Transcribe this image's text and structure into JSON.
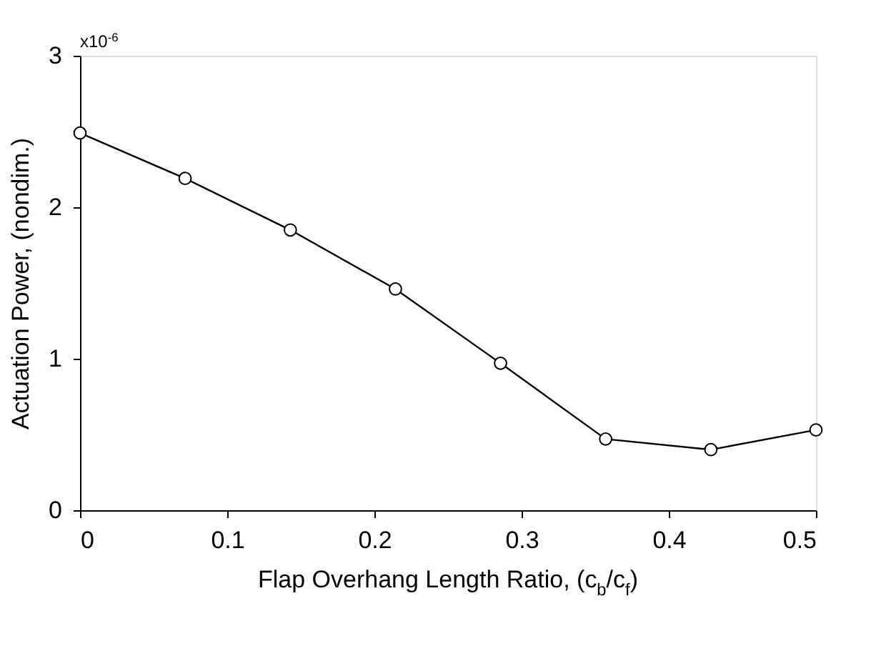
{
  "chart_data": {
    "type": "line",
    "xlabel": "Flap Overhang Length Ratio, (c$_{b}$/c$_{f}$)",
    "ylabel": "Actuation Power, (nondim.)",
    "x": [
      0,
      0.0714,
      0.1429,
      0.2143,
      0.2857,
      0.3571,
      0.4286,
      0.5
    ],
    "series": [
      {
        "color": "#000000",
        "values": [
          2.49,
          2.19,
          1.85,
          1.46,
          0.97,
          0.47,
          0.4,
          0.53
        ]
      }
    ],
    "xlim": [
      0,
      0.5
    ],
    "xticks": [
      0,
      0.1,
      0.2,
      0.3,
      0.4,
      0.5
    ],
    "ylim": [
      0,
      3
    ],
    "yticks": [
      0,
      1,
      2,
      3
    ],
    "annotations": [
      "x10$^{-6}$"
    ],
    "marker": "circle",
    "line_style": "solid",
    "grid": false
  }
}
